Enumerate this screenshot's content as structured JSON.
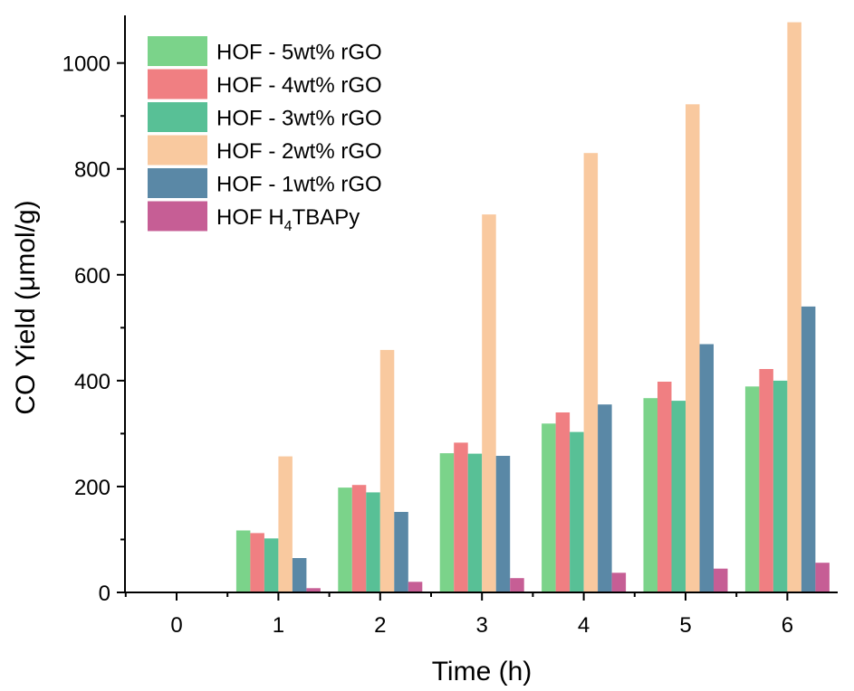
{
  "chart_data": {
    "type": "bar",
    "title": "",
    "xlabel": "Time (h)",
    "ylabel": "CO Yield (μmol/g)",
    "ylim": [
      0,
      1090
    ],
    "categories": [
      "0",
      "1",
      "2",
      "3",
      "4",
      "5",
      "6"
    ],
    "yticks": [
      "0",
      "200",
      "400",
      "600",
      "800",
      "1000"
    ],
    "legend_position": "top-left",
    "series": [
      {
        "name_main": "HOF - 5wt% rGO",
        "name_sub": "",
        "name_tail": "",
        "color": "#7bd38a",
        "values": [
          0,
          117,
          198,
          263,
          319,
          367,
          389
        ]
      },
      {
        "name_main": "HOF - 4wt% rGO",
        "name_sub": "",
        "name_tail": "",
        "color": "#f07f82",
        "values": [
          0,
          112,
          203,
          283,
          340,
          398,
          422
        ]
      },
      {
        "name_main": "HOF - 3wt% rGO",
        "name_sub": "",
        "name_tail": "",
        "color": "#58c096",
        "values": [
          0,
          102,
          189,
          262,
          303,
          362,
          400
        ]
      },
      {
        "name_main": "HOF - 2wt% rGO",
        "name_sub": "",
        "name_tail": "",
        "color": "#f9c99f",
        "values": [
          0,
          257,
          458,
          714,
          830,
          922,
          1077
        ]
      },
      {
        "name_main": "HOF - 1wt% rGO",
        "name_sub": "",
        "name_tail": "",
        "color": "#5a88a6",
        "values": [
          0,
          65,
          152,
          258,
          355,
          469,
          540
        ]
      },
      {
        "name_main": "HOF H",
        "name_sub": "4",
        "name_tail": "TBAPy",
        "color": "#c65e95",
        "values": [
          0,
          8,
          20,
          27,
          37,
          45,
          56
        ]
      }
    ]
  }
}
